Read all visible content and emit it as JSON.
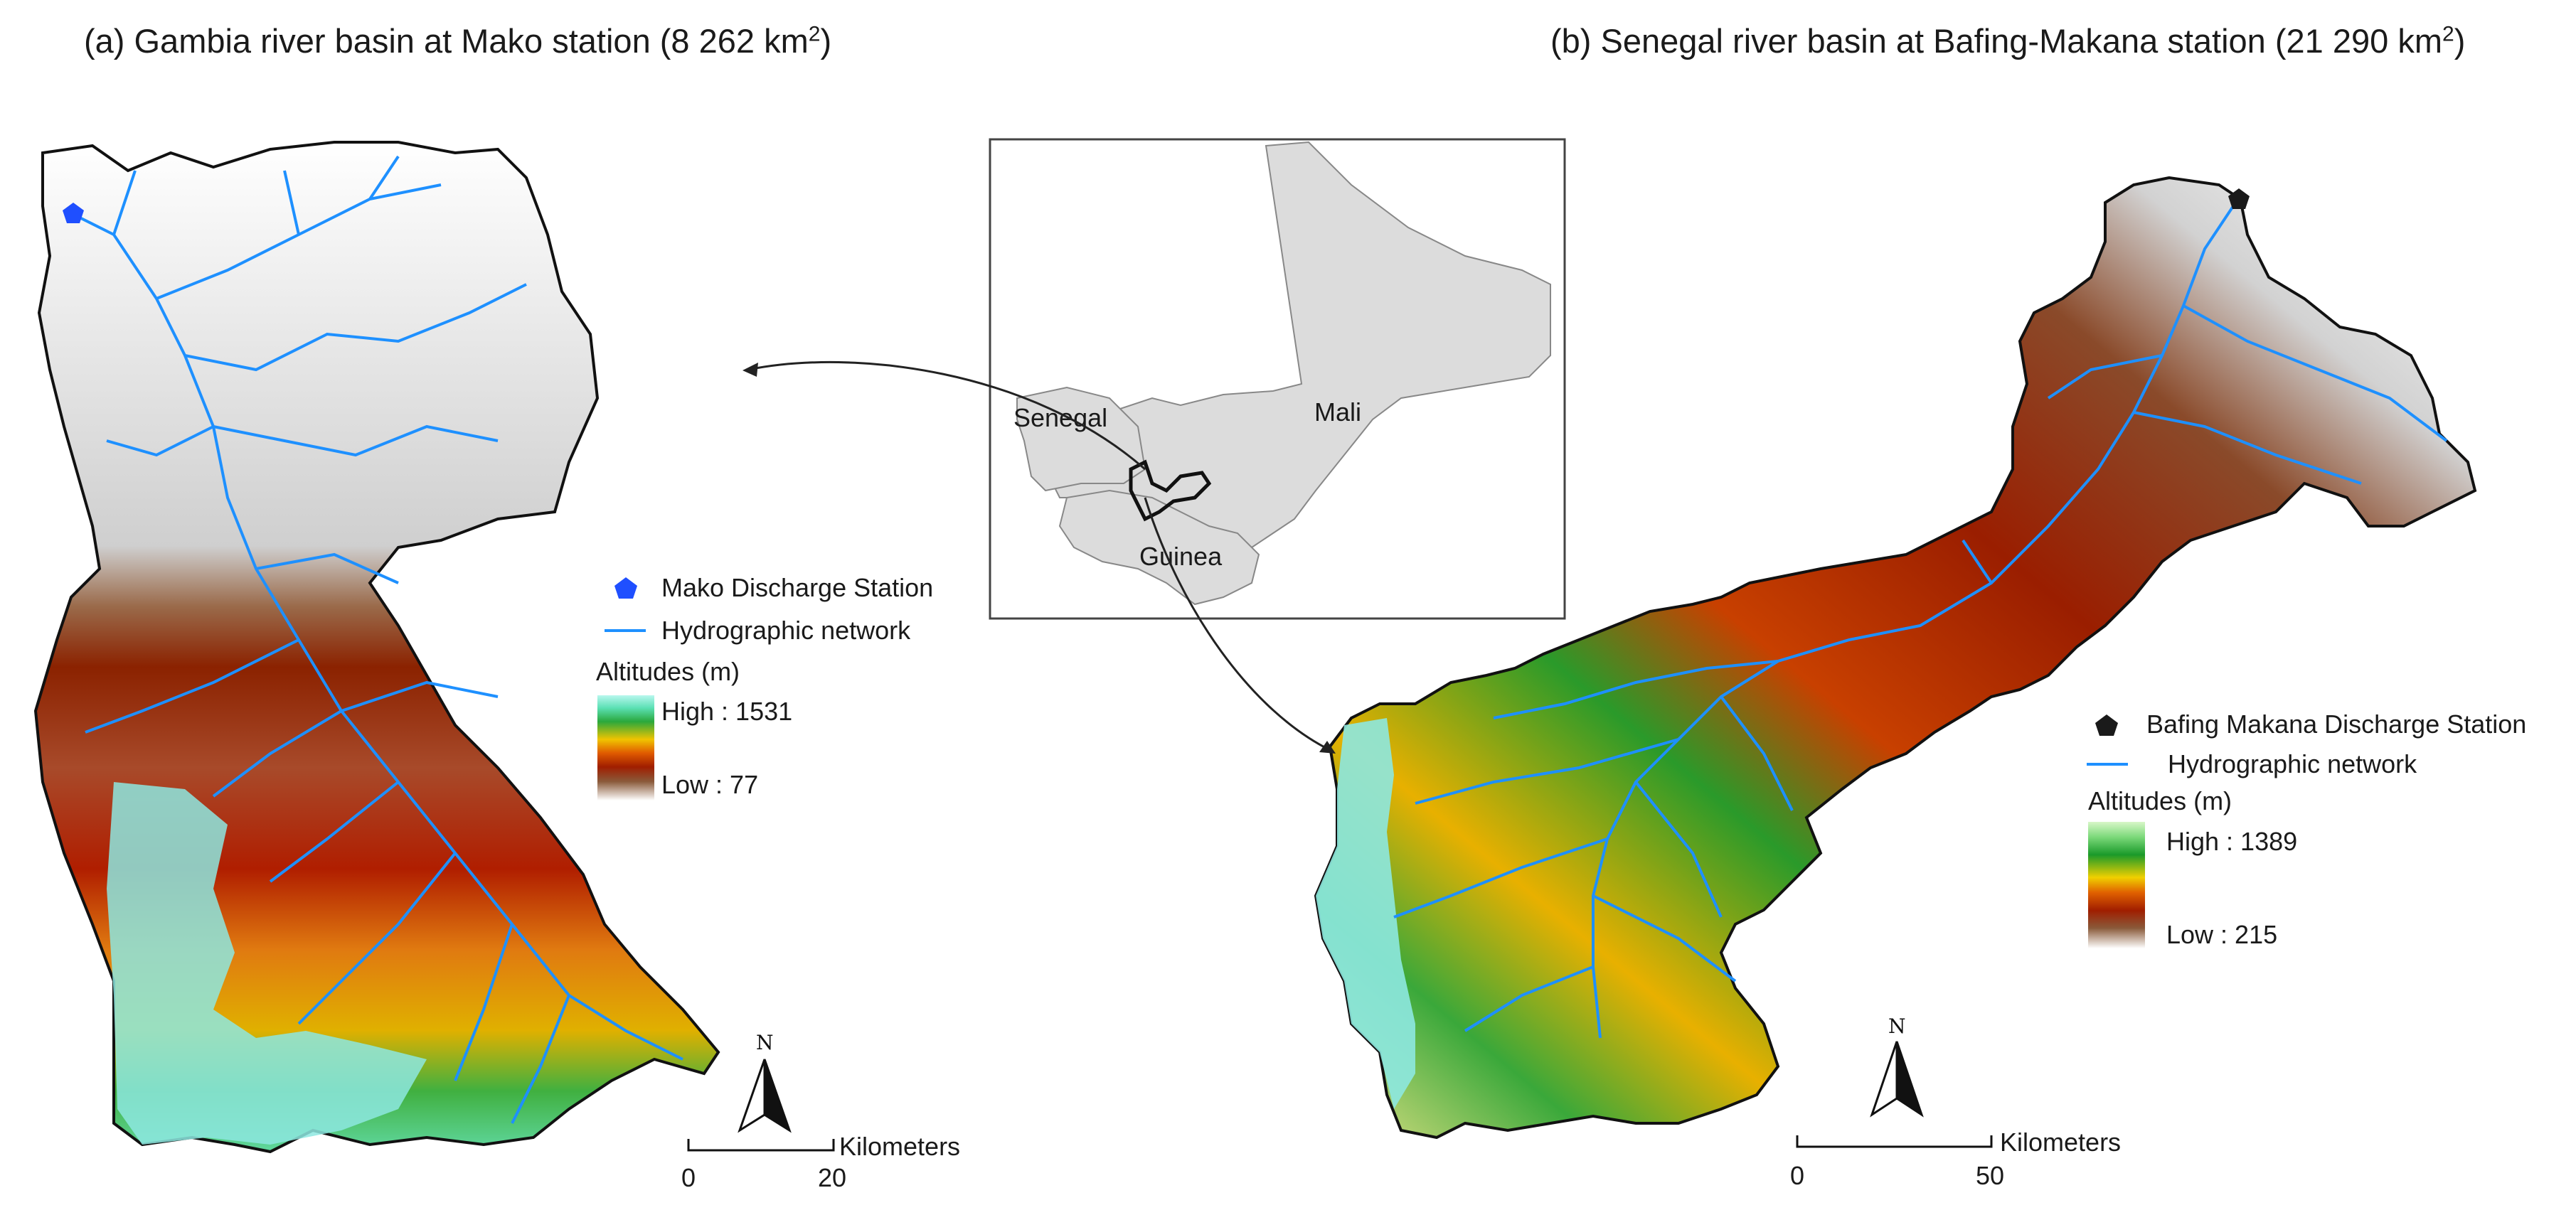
{
  "panel_a": {
    "title_prefix": "(a) Gambia river basin at Mako station (8 262 km",
    "title_sup": "2",
    "title_suffix": ")",
    "legend": {
      "station": "Mako Discharge Station",
      "network": "Hydrographic network",
      "altitudes_title": "Altitudes (m)",
      "high": "High : 1531",
      "low": "Low : 77"
    },
    "scalebar": {
      "label": "Kilometers",
      "zero": "0",
      "max": "20"
    },
    "north": "N"
  },
  "panel_b": {
    "title_prefix": "(b) Senegal river basin at Bafing-Makana station (21 290 km",
    "title_sup": "2",
    "title_suffix": ")",
    "legend": {
      "station": "Bafing Makana Discharge Station",
      "network": "Hydrographic network",
      "altitudes_title": "Altitudes (m)",
      "high": "High : 1389",
      "low": "Low : 215"
    },
    "scalebar": {
      "label": "Kilometers",
      "zero": "0",
      "max": "50"
    },
    "north": "N"
  },
  "inset": {
    "countries": [
      "Senegal",
      "Mali",
      "Guinea"
    ]
  },
  "colors": {
    "station_a": "#1f4fff",
    "station_b": "#1a1a1a",
    "river": "#1e90ff",
    "country_fill": "#dcdcdc"
  }
}
